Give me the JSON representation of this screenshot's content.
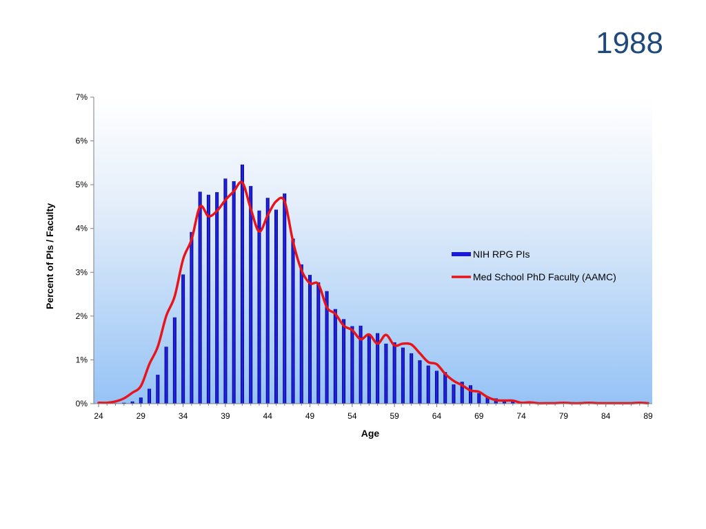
{
  "slide": {
    "title": "1988"
  },
  "chart_data": {
    "type": "bar",
    "title": "",
    "xlabel": "Age",
    "ylabel": "Percent of PIs / Faculty",
    "x_range": [
      24,
      89
    ],
    "ylim": [
      0,
      7
    ],
    "y_ticks": [
      "0%",
      "1%",
      "2%",
      "3%",
      "4%",
      "5%",
      "6%",
      "7%"
    ],
    "x_ticks": [
      24,
      29,
      34,
      39,
      44,
      49,
      54,
      59,
      64,
      69,
      74,
      79,
      84,
      89
    ],
    "grid": false,
    "legend_position": "right",
    "series": [
      {
        "name": "NIH RPG PIs",
        "type": "bar",
        "color": "#1a1ad6",
        "x": [
          24,
          25,
          26,
          27,
          28,
          29,
          30,
          31,
          32,
          33,
          34,
          35,
          36,
          37,
          38,
          39,
          40,
          41,
          42,
          43,
          44,
          45,
          46,
          47,
          48,
          49,
          50,
          51,
          52,
          53,
          54,
          55,
          56,
          57,
          58,
          59,
          60,
          61,
          62,
          63,
          64,
          65,
          66,
          67,
          68,
          69,
          70,
          71,
          72,
          73,
          74,
          75,
          76,
          77,
          78,
          79,
          80,
          81,
          82,
          83,
          84,
          85,
          86,
          87,
          88,
          89
        ],
        "values": [
          0,
          0,
          0.01,
          0.02,
          0.05,
          0.14,
          0.34,
          0.66,
          1.3,
          1.97,
          2.95,
          3.92,
          4.84,
          4.77,
          4.83,
          5.14,
          5.08,
          5.46,
          4.97,
          4.41,
          4.7,
          4.43,
          4.8,
          3.77,
          3.18,
          2.94,
          2.77,
          2.57,
          2.16,
          1.93,
          1.77,
          1.78,
          1.56,
          1.61,
          1.37,
          1.4,
          1.28,
          1.15,
          0.99,
          0.87,
          0.75,
          0.72,
          0.44,
          0.5,
          0.42,
          0.24,
          0.16,
          0.12,
          0.07,
          0.05,
          0.04,
          0.02,
          0.01,
          0.01,
          0,
          0,
          0,
          0,
          0,
          0,
          0,
          0,
          0,
          0,
          0,
          0
        ]
      },
      {
        "name": "Med School PhD Faculty (AAMC)",
        "type": "line",
        "color": "#e8141b",
        "x": [
          24,
          25,
          26,
          27,
          28,
          29,
          30,
          31,
          32,
          33,
          34,
          35,
          36,
          37,
          38,
          39,
          40,
          41,
          42,
          43,
          44,
          45,
          46,
          47,
          48,
          49,
          50,
          51,
          52,
          53,
          54,
          55,
          56,
          57,
          58,
          59,
          60,
          61,
          62,
          63,
          64,
          65,
          66,
          67,
          68,
          69,
          70,
          71,
          72,
          73,
          74,
          75,
          76,
          77,
          78,
          79,
          80,
          81,
          82,
          83,
          84,
          85,
          86,
          87,
          88,
          89
        ],
        "values": [
          0.02,
          0.02,
          0.05,
          0.12,
          0.25,
          0.4,
          0.9,
          1.3,
          2.0,
          2.45,
          3.3,
          3.75,
          4.5,
          4.28,
          4.4,
          4.65,
          4.85,
          5.05,
          4.45,
          3.93,
          4.3,
          4.62,
          4.62,
          3.7,
          3.05,
          2.75,
          2.73,
          2.2,
          2.05,
          1.78,
          1.68,
          1.47,
          1.58,
          1.37,
          1.57,
          1.33,
          1.37,
          1.35,
          1.15,
          0.95,
          0.9,
          0.68,
          0.52,
          0.42,
          0.3,
          0.27,
          0.15,
          0.08,
          0.07,
          0.07,
          0.02,
          0.03,
          0.01,
          0.01,
          0.01,
          0.02,
          0.01,
          0.01,
          0.02,
          0.01,
          0.01,
          0.01,
          0.01,
          0.01,
          0.02,
          0.01
        ]
      }
    ]
  }
}
